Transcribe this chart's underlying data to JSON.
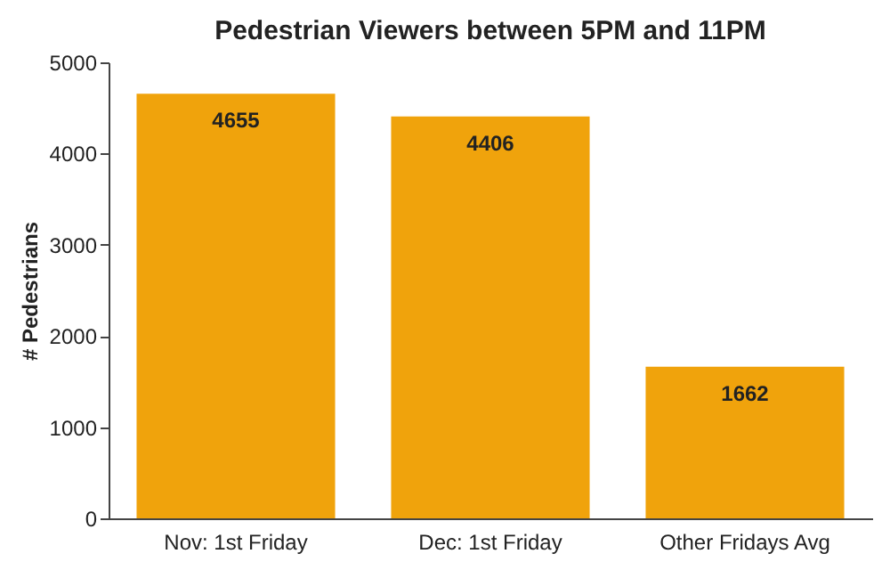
{
  "chart_data": {
    "type": "bar",
    "title": "Pedestrian Viewers between 5PM and 11PM",
    "ylabel": "# Pedestrians",
    "categories": [
      "Nov: 1st Friday",
      "Dec: 1st Friday",
      "Other Fridays Avg"
    ],
    "values": [
      4655,
      4406,
      1662
    ],
    "color": "#f0a30c",
    "ylim": [
      0,
      5000
    ],
    "yticks": [
      0,
      1000,
      2000,
      3000,
      4000,
      5000
    ],
    "grid": false,
    "data_labels": true
  }
}
